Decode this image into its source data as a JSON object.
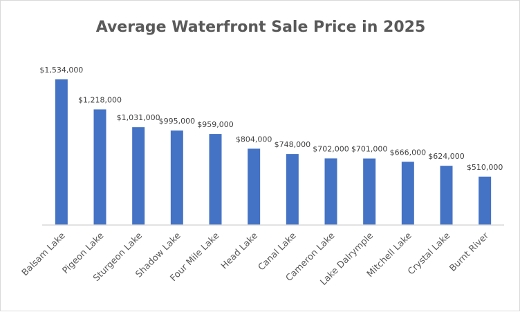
{
  "chart_data": {
    "type": "bar",
    "title": "Average Waterfront Sale Price in 2025",
    "xlabel": "",
    "ylabel": "",
    "categories": [
      "Balsam Lake",
      "Pigeon Lake",
      "Sturgeon Lake",
      "Shadow Lake",
      "Four Mile Lake",
      "Head Lake",
      "Canal Lake",
      "Cameron Lake",
      "Lake Dalrymple",
      "Mitchell Lake",
      "Crystal Lake",
      "Burnt River"
    ],
    "values": [
      1534000,
      1218000,
      1031000,
      995000,
      959000,
      804000,
      748000,
      702000,
      701000,
      666000,
      624000,
      510000
    ],
    "data_labels": [
      "$1,534,000",
      "$1,218,000",
      "$1,031,000",
      "$995,000",
      "$959,000",
      "$804,000",
      "$748,000",
      "$702,000",
      "$701,000",
      "$666,000",
      "$624,000",
      "$510,000"
    ],
    "ylim": [
      0,
      1534000
    ],
    "y_axis_visible": false,
    "grid": false,
    "legend": "none",
    "bar_color": "#4472C4"
  }
}
